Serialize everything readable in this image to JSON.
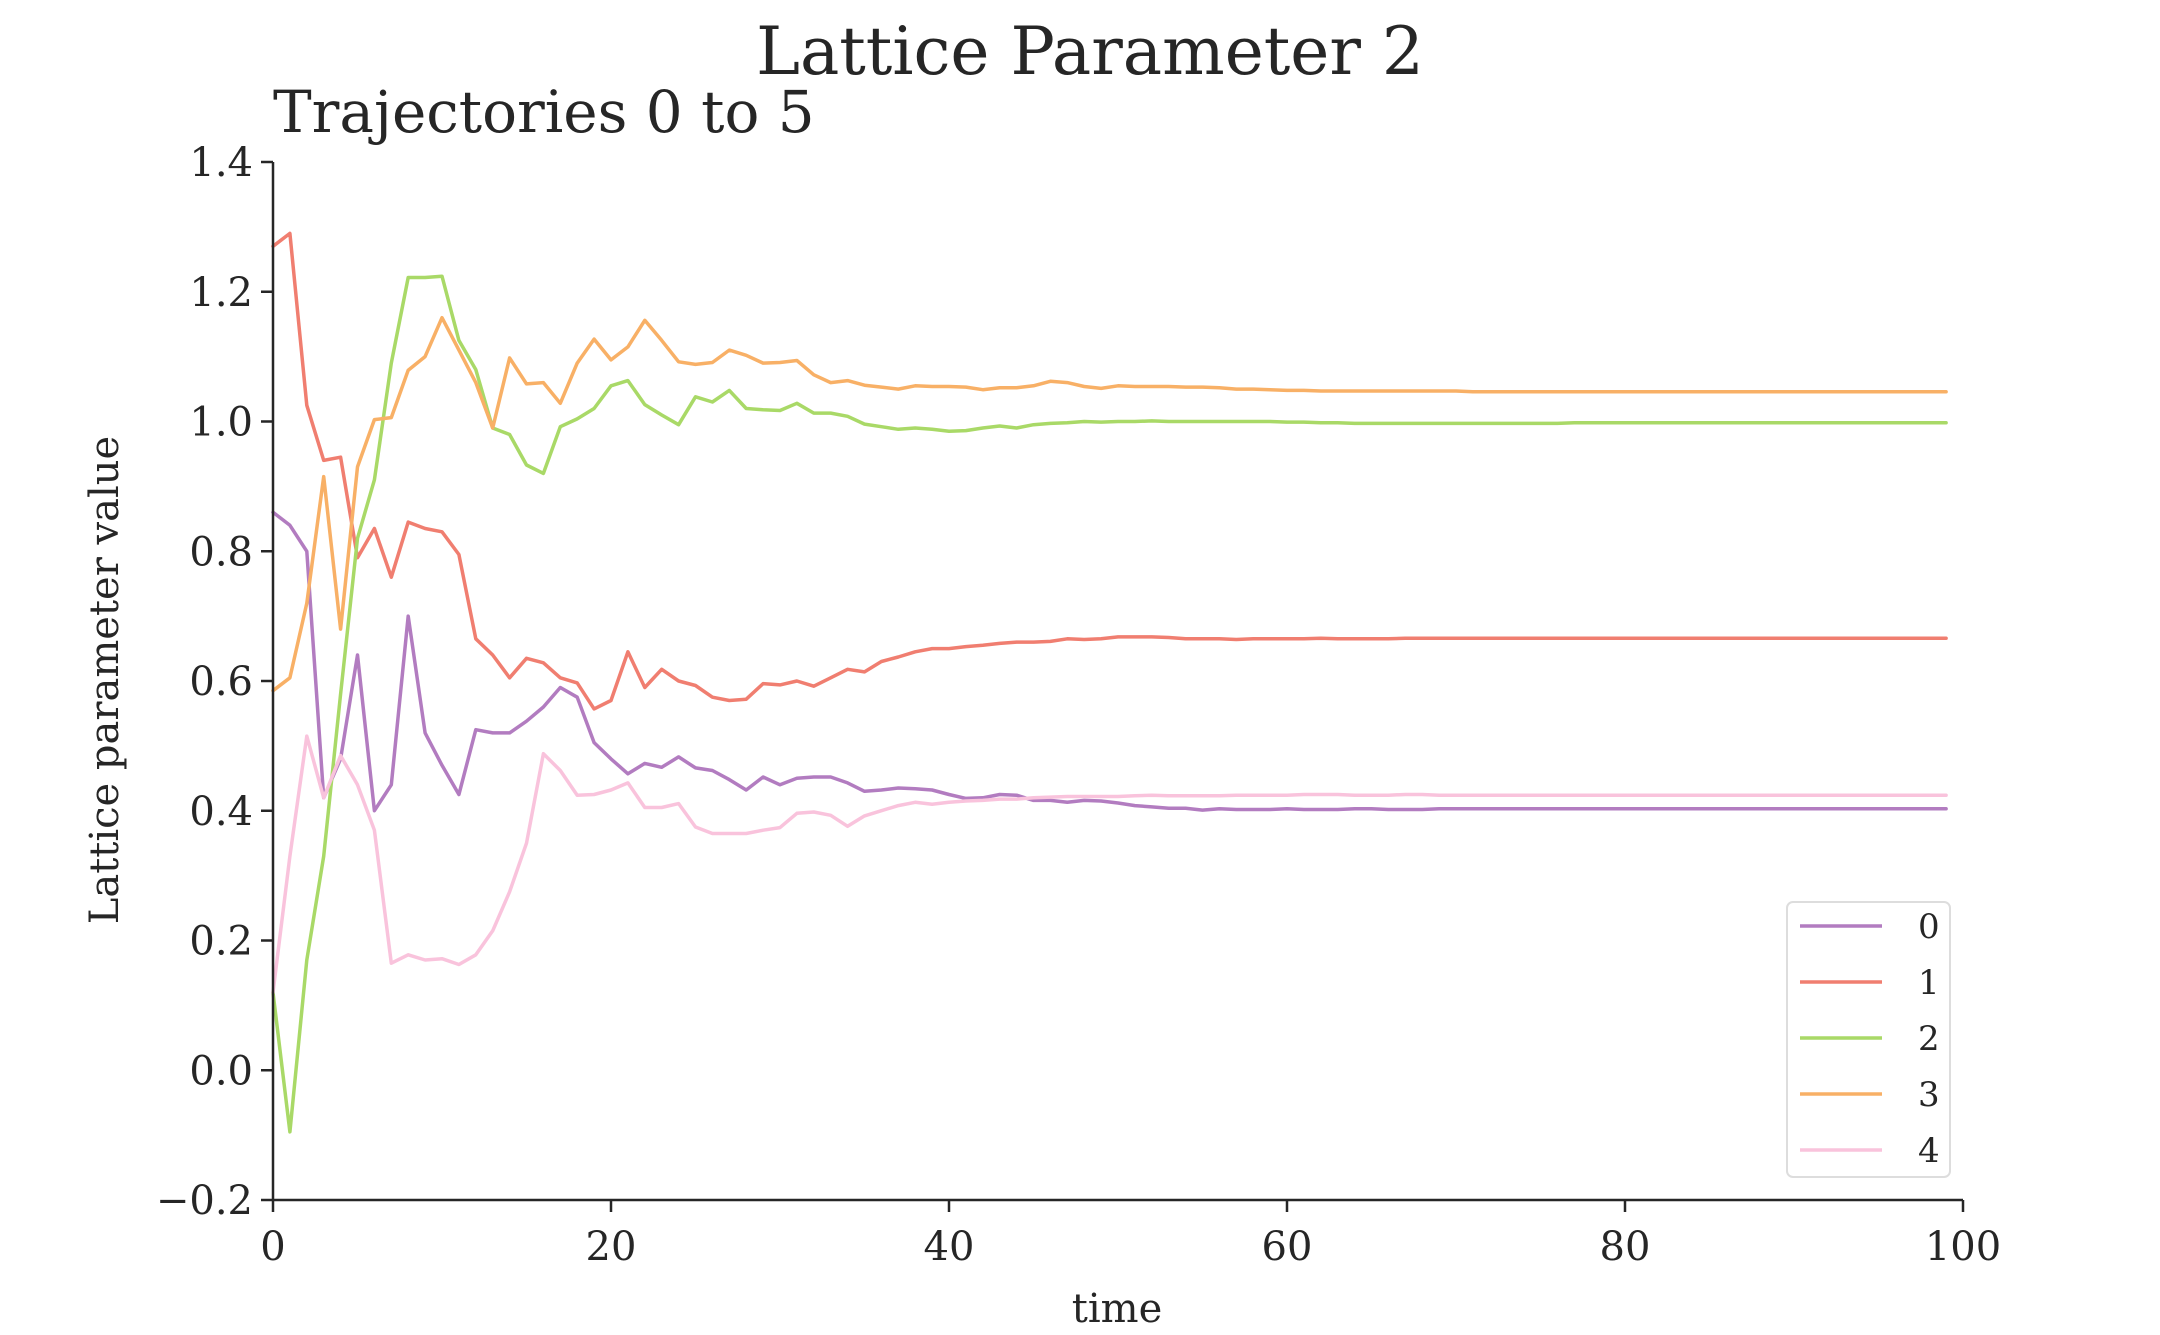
{
  "chart_data": {
    "type": "line",
    "title": "Lattice Parameter 2",
    "subtitle": "Trajectories 0 to 5",
    "xlabel": "time",
    "ylabel": "Lattice parameter value",
    "xlim": [
      0,
      100
    ],
    "ylim": [
      -0.2,
      1.4
    ],
    "xticks": [
      0,
      20,
      40,
      60,
      80,
      100
    ],
    "yticks": [
      -0.2,
      0.0,
      0.2,
      0.4,
      0.6,
      0.8,
      1.0,
      1.2,
      1.4
    ],
    "ytick_labels": [
      "−0.2",
      "0.0",
      "0.2",
      "0.4",
      "0.6",
      "0.8",
      "1.0",
      "1.2",
      "1.4"
    ],
    "grid": false,
    "legend_position": "lower-right",
    "x": [
      0,
      1,
      2,
      3,
      4,
      5,
      6,
      7,
      8,
      9,
      10,
      11,
      12,
      13,
      14,
      15,
      16,
      17,
      18,
      19,
      20,
      21,
      22,
      23,
      24,
      25,
      26,
      27,
      28,
      29,
      30,
      31,
      32,
      33,
      34,
      35,
      36,
      37,
      38,
      39,
      40,
      41,
      42,
      43,
      44,
      45,
      46,
      47,
      48,
      49,
      50,
      51,
      52,
      53,
      54,
      55,
      56,
      57,
      58,
      59,
      60,
      61,
      62,
      63,
      64,
      65,
      66,
      67,
      68,
      69,
      70,
      71,
      72,
      73,
      74,
      75,
      76,
      77,
      78,
      79,
      80,
      81,
      82,
      83,
      84,
      85,
      86,
      87,
      88,
      89,
      90,
      91,
      92,
      93,
      94,
      95,
      96,
      97,
      98,
      99
    ],
    "series": [
      {
        "name": "0",
        "color": "#b27cc0",
        "values": [
          0.86,
          0.84,
          0.8,
          0.42,
          0.48,
          0.64,
          0.4,
          0.44,
          0.7,
          0.52,
          0.47,
          0.425,
          0.525,
          0.52,
          0.52,
          0.538,
          0.56,
          0.59,
          0.575,
          0.505,
          0.48,
          0.457,
          0.473,
          0.467,
          0.483,
          0.466,
          0.462,
          0.448,
          0.432,
          0.452,
          0.44,
          0.45,
          0.452,
          0.452,
          0.443,
          0.43,
          0.432,
          0.435,
          0.434,
          0.432,
          0.425,
          0.419,
          0.42,
          0.425,
          0.424,
          0.416,
          0.416,
          0.413,
          0.416,
          0.415,
          0.412,
          0.408,
          0.406,
          0.404,
          0.404,
          0.401,
          0.403,
          0.402,
          0.402,
          0.402,
          0.403,
          0.402,
          0.402,
          0.402,
          0.403,
          0.403,
          0.402,
          0.402,
          0.402,
          0.403,
          0.403,
          0.403,
          0.403,
          0.403,
          0.403,
          0.403,
          0.403,
          0.403,
          0.403,
          0.403,
          0.403,
          0.403,
          0.403,
          0.403,
          0.403,
          0.403,
          0.403,
          0.403,
          0.403,
          0.403,
          0.403,
          0.403,
          0.403,
          0.403,
          0.403,
          0.403,
          0.403,
          0.403,
          0.403,
          0.403
        ]
      },
      {
        "name": "1",
        "color": "#f07e70",
        "values": [
          1.27,
          1.29,
          1.025,
          0.94,
          0.945,
          0.79,
          0.835,
          0.76,
          0.845,
          0.835,
          0.83,
          0.795,
          0.665,
          0.64,
          0.605,
          0.635,
          0.628,
          0.605,
          0.597,
          0.557,
          0.57,
          0.645,
          0.59,
          0.618,
          0.6,
          0.593,
          0.575,
          0.57,
          0.572,
          0.596,
          0.594,
          0.6,
          0.592,
          0.605,
          0.618,
          0.614,
          0.63,
          0.637,
          0.645,
          0.65,
          0.65,
          0.653,
          0.655,
          0.658,
          0.66,
          0.66,
          0.661,
          0.665,
          0.664,
          0.665,
          0.668,
          0.668,
          0.668,
          0.667,
          0.665,
          0.665,
          0.665,
          0.664,
          0.665,
          0.665,
          0.665,
          0.665,
          0.666,
          0.665,
          0.665,
          0.665,
          0.665,
          0.666,
          0.666,
          0.666,
          0.666,
          0.666,
          0.666,
          0.666,
          0.666,
          0.666,
          0.666,
          0.666,
          0.666,
          0.666,
          0.666,
          0.666,
          0.666,
          0.666,
          0.666,
          0.666,
          0.666,
          0.666,
          0.666,
          0.666,
          0.666,
          0.666,
          0.666,
          0.666,
          0.666,
          0.666,
          0.666,
          0.666,
          0.666,
          0.666
        ]
      },
      {
        "name": "2",
        "color": "#a9d967",
        "values": [
          0.12,
          -0.095,
          0.17,
          0.33,
          0.58,
          0.82,
          0.91,
          1.09,
          1.222,
          1.222,
          1.224,
          1.125,
          1.08,
          0.99,
          0.98,
          0.933,
          0.92,
          0.992,
          1.004,
          1.02,
          1.055,
          1.063,
          1.026,
          1.01,
          0.995,
          1.038,
          1.03,
          1.048,
          1.02,
          1.018,
          1.017,
          1.028,
          1.013,
          1.013,
          1.008,
          0.996,
          0.992,
          0.988,
          0.99,
          0.988,
          0.985,
          0.986,
          0.99,
          0.993,
          0.99,
          0.995,
          0.997,
          0.998,
          1.0,
          0.999,
          1.0,
          1.0,
          1.001,
          1.0,
          1.0,
          1.0,
          1.0,
          1.0,
          1.0,
          1.0,
          0.999,
          0.999,
          0.998,
          0.998,
          0.997,
          0.997,
          0.997,
          0.997,
          0.997,
          0.997,
          0.997,
          0.997,
          0.997,
          0.997,
          0.997,
          0.997,
          0.997,
          0.998,
          0.998,
          0.998,
          0.998,
          0.998,
          0.998,
          0.998,
          0.998,
          0.998,
          0.998,
          0.998,
          0.998,
          0.998,
          0.998,
          0.998,
          0.998,
          0.998,
          0.998,
          0.998,
          0.998,
          0.998,
          0.998,
          0.998
        ]
      },
      {
        "name": "3",
        "color": "#f8b066",
        "values": [
          0.585,
          0.605,
          0.72,
          0.915,
          0.68,
          0.93,
          1.003,
          1.006,
          1.079,
          1.1,
          1.16,
          1.11,
          1.06,
          0.99,
          1.098,
          1.058,
          1.06,
          1.028,
          1.09,
          1.127,
          1.095,
          1.115,
          1.156,
          1.125,
          1.092,
          1.088,
          1.091,
          1.11,
          1.102,
          1.09,
          1.091,
          1.094,
          1.072,
          1.06,
          1.063,
          1.056,
          1.053,
          1.05,
          1.055,
          1.054,
          1.054,
          1.053,
          1.049,
          1.052,
          1.052,
          1.055,
          1.062,
          1.06,
          1.054,
          1.051,
          1.055,
          1.054,
          1.054,
          1.054,
          1.053,
          1.053,
          1.052,
          1.05,
          1.05,
          1.049,
          1.048,
          1.048,
          1.047,
          1.047,
          1.047,
          1.047,
          1.047,
          1.047,
          1.047,
          1.047,
          1.047,
          1.046,
          1.046,
          1.046,
          1.046,
          1.046,
          1.046,
          1.046,
          1.046,
          1.046,
          1.046,
          1.046,
          1.046,
          1.046,
          1.046,
          1.046,
          1.046,
          1.046,
          1.046,
          1.046,
          1.046,
          1.046,
          1.046,
          1.046,
          1.046,
          1.046,
          1.046,
          1.046,
          1.046,
          1.046
        ]
      },
      {
        "name": "4",
        "color": "#f9c3dc",
        "values": [
          0.12,
          0.33,
          0.515,
          0.42,
          0.485,
          0.44,
          0.37,
          0.165,
          0.178,
          0.17,
          0.172,
          0.163,
          0.178,
          0.215,
          0.275,
          0.35,
          0.488,
          0.462,
          0.424,
          0.425,
          0.432,
          0.443,
          0.405,
          0.405,
          0.411,
          0.375,
          0.365,
          0.365,
          0.365,
          0.37,
          0.374,
          0.396,
          0.398,
          0.393,
          0.376,
          0.392,
          0.4,
          0.408,
          0.413,
          0.41,
          0.413,
          0.415,
          0.416,
          0.418,
          0.418,
          0.42,
          0.421,
          0.422,
          0.422,
          0.422,
          0.422,
          0.423,
          0.424,
          0.423,
          0.423,
          0.423,
          0.423,
          0.424,
          0.424,
          0.424,
          0.424,
          0.425,
          0.425,
          0.425,
          0.424,
          0.424,
          0.424,
          0.425,
          0.425,
          0.424,
          0.424,
          0.424,
          0.424,
          0.424,
          0.424,
          0.424,
          0.424,
          0.424,
          0.424,
          0.424,
          0.424,
          0.424,
          0.424,
          0.424,
          0.424,
          0.424,
          0.424,
          0.424,
          0.424,
          0.424,
          0.424,
          0.424,
          0.424,
          0.424,
          0.424,
          0.424,
          0.424,
          0.424,
          0.424,
          0.424
        ]
      }
    ]
  }
}
